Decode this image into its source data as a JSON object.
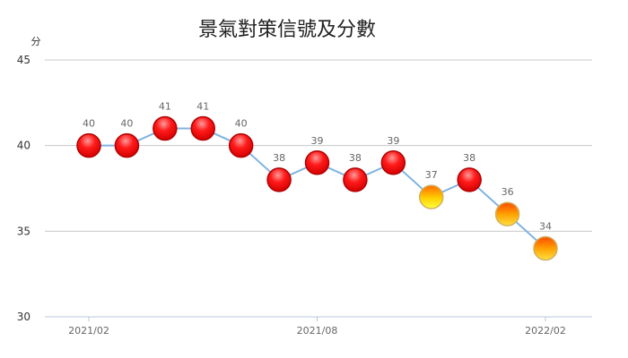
{
  "chart_data": {
    "type": "line",
    "title": "景氣對策信號及分數",
    "ylabel": "分",
    "xlabel": "",
    "ylim": [
      30,
      45
    ],
    "yticks": [
      30,
      35,
      40,
      45
    ],
    "xticks": [
      "2021/02",
      "2021/08",
      "2022/02"
    ],
    "grid": true,
    "series": [
      {
        "values": [
          40,
          40,
          41,
          41,
          40,
          38,
          39,
          38,
          39,
          37,
          38,
          36,
          34
        ],
        "signals": [
          "red",
          "red",
          "red",
          "red",
          "red",
          "red",
          "red",
          "red",
          "red",
          "yellow-red",
          "red",
          "yellow-red-orange",
          "yellow-red-orange"
        ]
      }
    ],
    "x": [
      "2021/02",
      "2021/03",
      "2021/04",
      "2021/05",
      "2021/06",
      "2021/07",
      "2021/08",
      "2021/09",
      "2021/10",
      "2021/11",
      "2021/12",
      "2022/01",
      "2022/02"
    ]
  },
  "colors": {
    "line": "#7fb4e0",
    "grid": "#c8c8c8",
    "red_light": "#ff8080",
    "red": "#ff1010",
    "red_dark": "#c80000",
    "yellow": "#ffff00",
    "orange": "#ff8c00"
  }
}
